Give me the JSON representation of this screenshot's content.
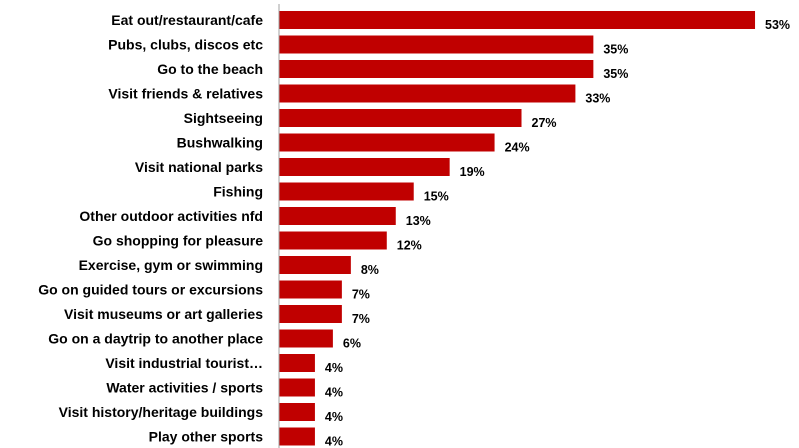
{
  "chart_data": {
    "type": "bar",
    "orientation": "horizontal",
    "categories": [
      "Eat out/restaurant/cafe",
      "Pubs, clubs, discos etc",
      "Go to the beach ",
      "Visit friends & relatives",
      "Sightseeing",
      "Bushwalking",
      "Visit national parks",
      "Fishing",
      "Other outdoor activities nfd",
      "Go shopping for pleasure",
      "Exercise, gym or swimming",
      "Go on guided tours or excursions",
      "Visit museums or art galleries",
      "Go on a daytrip to another place",
      "Visit industrial tourist…",
      "Water activities / sports ",
      "Visit history/heritage buildings",
      "Play other sports"
    ],
    "values": [
      53,
      35,
      35,
      33,
      27,
      24,
      19,
      15,
      13,
      12,
      8,
      7,
      7,
      6,
      4,
      4,
      4,
      4
    ],
    "value_labels": [
      "53%",
      "35%",
      "35%",
      "33%",
      "27%",
      "24%",
      "19%",
      "15%",
      "13%",
      "12%",
      "8%",
      "7%",
      "7%",
      "6%",
      "4%",
      "4%",
      "4%",
      "4%"
    ],
    "xlim": [
      0,
      55
    ],
    "grid": false,
    "legend": "none",
    "bar_color": "#c00000",
    "axis_color": "#a0a0a0"
  }
}
